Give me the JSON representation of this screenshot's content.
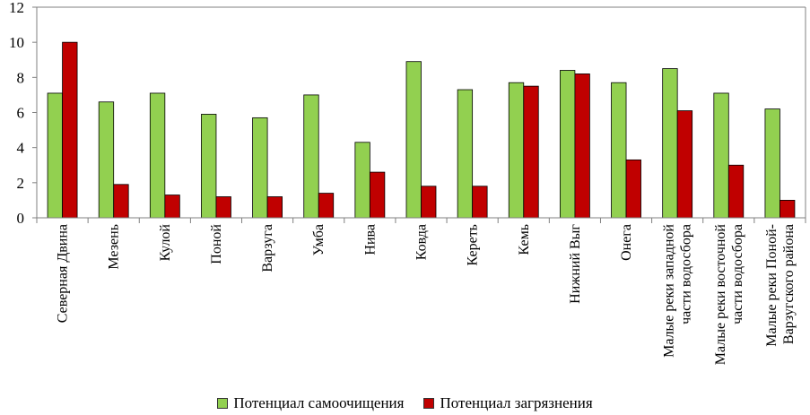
{
  "chart_data": {
    "type": "bar",
    "categories": [
      [
        "Северная Двина"
      ],
      [
        "Мезень"
      ],
      [
        "Кулой"
      ],
      [
        "Поной"
      ],
      [
        "Варзуга"
      ],
      [
        "Умба"
      ],
      [
        "Нива"
      ],
      [
        "Ковда"
      ],
      [
        "Кереть"
      ],
      [
        "Кемь"
      ],
      [
        "Нижний Выг"
      ],
      [
        "Онега"
      ],
      [
        "Малые реки западной",
        "части водосбора"
      ],
      [
        "Малые реки восточной",
        "части водосбора"
      ],
      [
        "Малые реки Поной-",
        "Варзугского района"
      ]
    ],
    "series": [
      {
        "name": "Потенциал самоочищения",
        "color": "#92d050",
        "values": [
          7.1,
          6.6,
          7.1,
          5.9,
          5.7,
          7.0,
          4.3,
          8.9,
          7.3,
          7.7,
          8.4,
          7.7,
          8.5,
          7.1,
          6.2
        ]
      },
      {
        "name": "Потенциал загрязнения",
        "color": "#c00000",
        "values": [
          10.0,
          1.9,
          1.3,
          1.2,
          1.2,
          1.4,
          2.6,
          1.8,
          1.8,
          7.5,
          8.2,
          3.3,
          6.1,
          3.0,
          1.0
        ]
      }
    ],
    "ylim": [
      0,
      12
    ],
    "yticks": [
      0,
      2,
      4,
      6,
      8,
      10,
      12
    ],
    "title": "",
    "xlabel": "",
    "ylabel": "",
    "grid": false,
    "legend_position": "bottom"
  },
  "legend": {
    "items": [
      {
        "label": "Потенциал самоочищения",
        "color": "#92d050"
      },
      {
        "label": "Потенциал загрязнения",
        "color": "#c00000"
      }
    ]
  }
}
